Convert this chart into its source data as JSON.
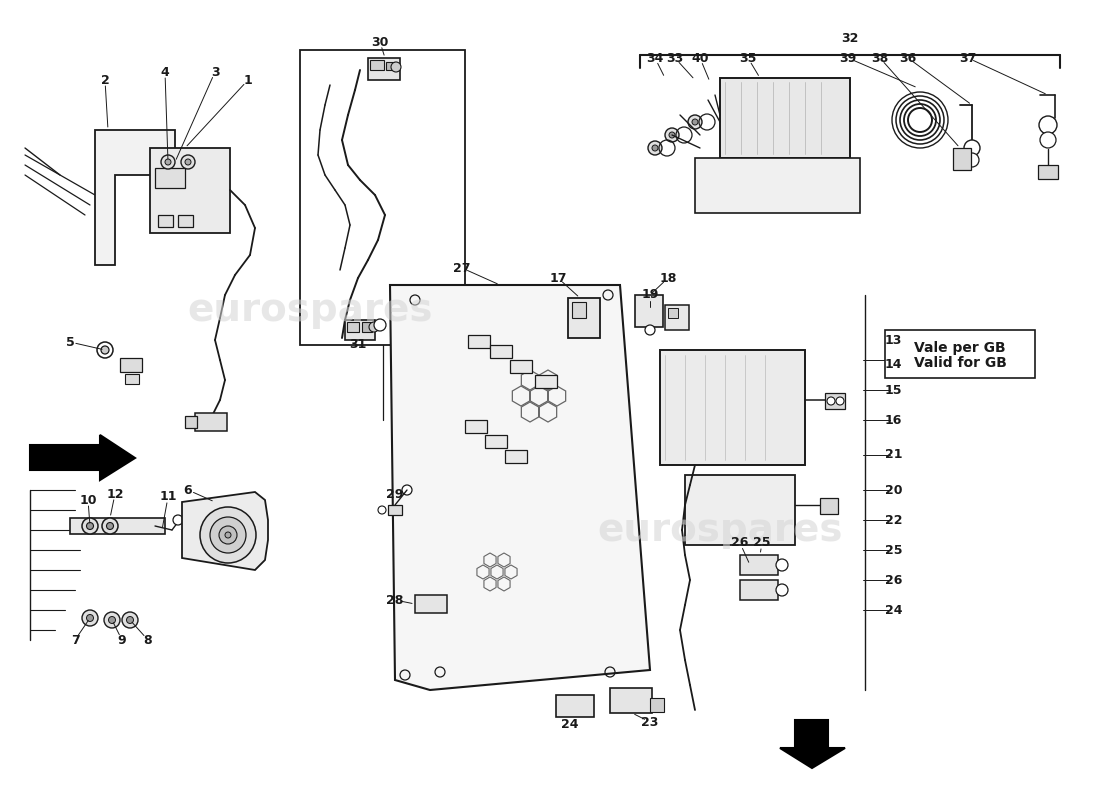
{
  "bg": "#ffffff",
  "lc": "#1a1a1a",
  "wm_color": "#cccccc",
  "wm_text": "eurospares",
  "fig_w": 11.0,
  "fig_h": 8.0,
  "dpi": 100
}
